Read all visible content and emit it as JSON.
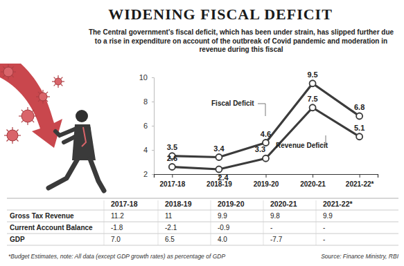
{
  "chart_data": {
    "type": "line",
    "title": "WIDENING FISCAL DEFICIT",
    "subtitle": "The Central government's fiscal deficit, which has been under strain, has slipped further due to a rise in expenditure on account of the outbreak of Covid pandemic and moderation in revenue during this fiscal",
    "categories": [
      "2017-18",
      "2018-19",
      "2019-20",
      "2020-21",
      "2021-22*"
    ],
    "series": [
      {
        "name": "Fiscal Deficit",
        "color": "#3b3b3b",
        "values": [
          3.5,
          3.4,
          4.6,
          9.5,
          6.8
        ]
      },
      {
        "name": "Revenue Deficit",
        "color": "#3b3b3b",
        "values": [
          2.6,
          2.4,
          3.3,
          7.5,
          5.1
        ]
      }
    ],
    "ylim": [
      2,
      10
    ],
    "yticks": [
      2,
      4,
      6,
      8,
      10
    ],
    "grid": false,
    "data_labels": true,
    "marker": "circle"
  },
  "table": {
    "columns": [
      "2017-18",
      "2018-19",
      "2019-20",
      "2020-21",
      "2021-22*"
    ],
    "rows": [
      {
        "label": "Gross Tax Revenue",
        "cells": [
          "11.2",
          "11",
          "9.9",
          "9.8",
          "9.9"
        ]
      },
      {
        "label": "Current Account Balance",
        "cells": [
          "-1.8",
          "-2.1",
          "-0.9",
          "-",
          "-"
        ]
      },
      {
        "label": "GDP",
        "cells": [
          "7.0",
          "6.5",
          "4.0",
          "-7.7",
          "-"
        ]
      }
    ]
  },
  "footer": {
    "note": "*Budget Estimates, note: All data (except GDP growth rates) as percentage of GDP",
    "source": "Source: Finance Ministry, RBI"
  }
}
